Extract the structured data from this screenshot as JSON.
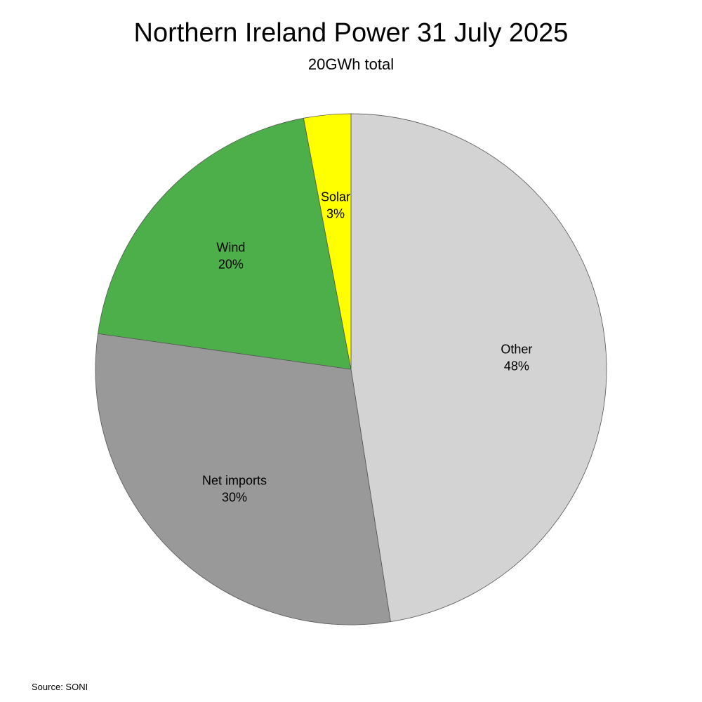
{
  "chart_data": {
    "type": "pie",
    "title": "Northern Ireland Power 31 July 2025",
    "subtitle": "20GWh total",
    "slices": [
      {
        "label": "Other",
        "value": 48,
        "value_label": "48%",
        "color": "#d3d3d3"
      },
      {
        "label": "Net imports",
        "value": 30,
        "value_label": "30%",
        "color": "#999999"
      },
      {
        "label": "Wind",
        "value": 20,
        "value_label": "20%",
        "color": "#4daf4a"
      },
      {
        "label": "Solar",
        "value": 3,
        "value_label": "3%",
        "color": "#ffff00"
      }
    ],
    "start": "12 o'clock",
    "direction": "clockwise",
    "source": "Source: SONI"
  }
}
